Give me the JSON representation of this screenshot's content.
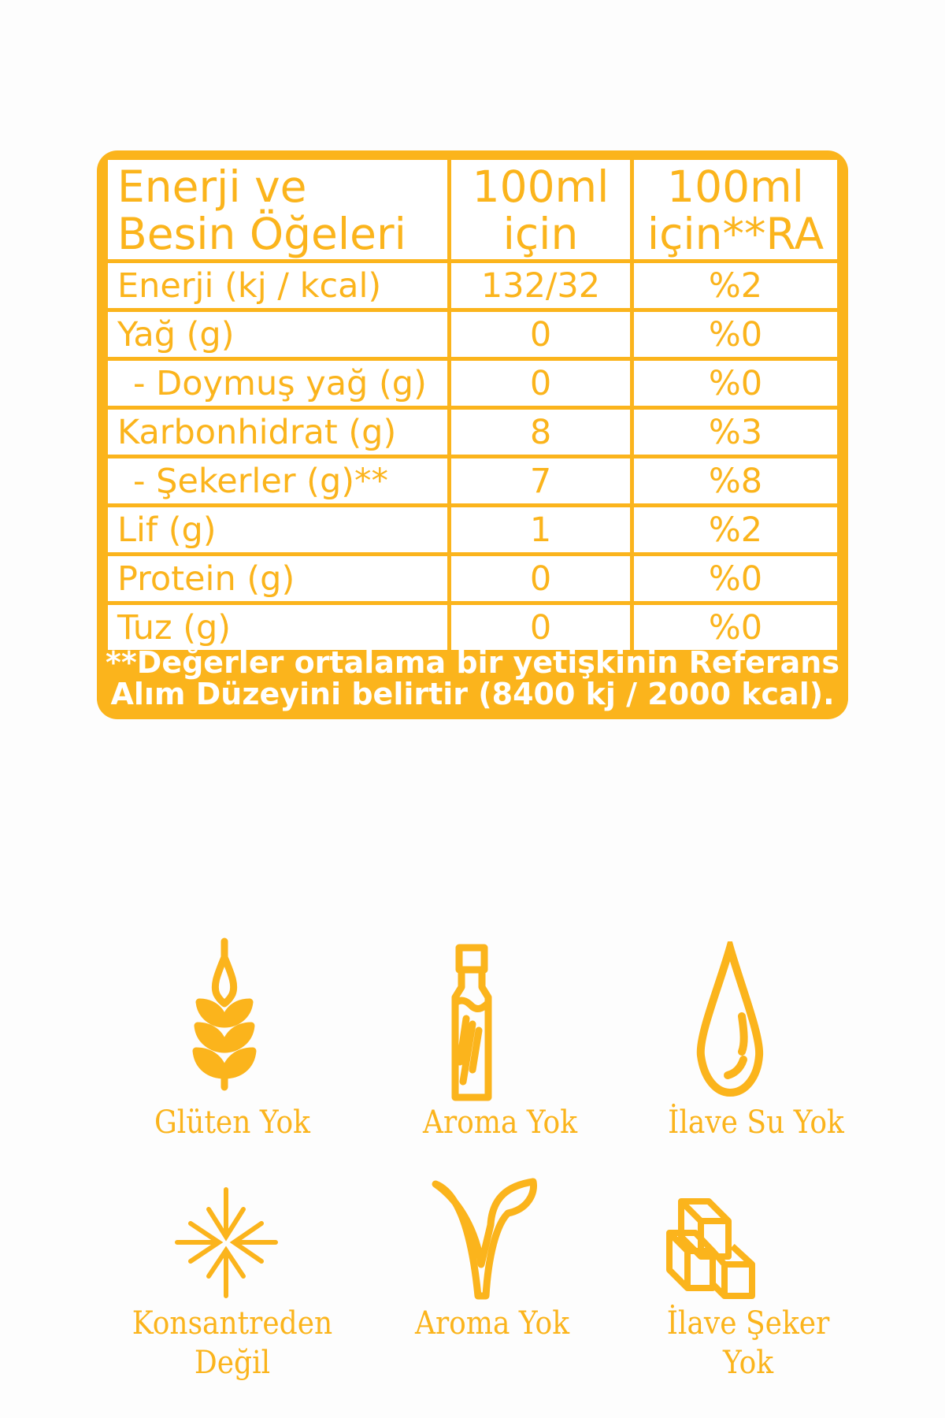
{
  "table": {
    "header": [
      "Enerji ve\nBesin Öğeleri",
      "100ml\niçin",
      "100ml\niçin**RA"
    ],
    "header_lines": [
      [
        "Enerji ve",
        "Besin Öğeleri"
      ],
      [
        "100ml",
        "için"
      ],
      [
        "100ml",
        "için**RA"
      ]
    ],
    "rows": [
      {
        "name": "Enerji (kj / kcal)",
        "value": "132/32",
        "ra": "%2"
      },
      {
        "name": "Yağ (g)",
        "value": "0",
        "ra": "%0"
      },
      {
        "name": "- Doymuş yağ (g)",
        "value": "0",
        "ra": "%0"
      },
      {
        "name": "Karbonhidrat (g)",
        "value": "8",
        "ra": "%3"
      },
      {
        "name": "- Şekerler (g)**",
        "value": "7",
        "ra": "%8"
      },
      {
        "name": "Lif (g)",
        "value": "1",
        "ra": "%2"
      },
      {
        "name": "Protein (g)",
        "value": "0",
        "ra": "%0"
      },
      {
        "name": "Tuz (g)",
        "value": "0",
        "ra": "%0"
      }
    ],
    "footnote_lines": [
      "**Değerler ortalama bir yetişkinin Referans",
      "Alım Düzeyini belirtir (8400 kj / 2000 kcal)."
    ]
  },
  "badges": [
    {
      "icon": "wheat-icon",
      "label": "Glüten Yok"
    },
    {
      "icon": "bottle-icon",
      "label": "Aroma Yok"
    },
    {
      "icon": "water-drop-icon",
      "label": "İlave Su Yok"
    },
    {
      "icon": "compress-arrows-icon",
      "label_lines": [
        "Konsantreden",
        "Değil"
      ]
    },
    {
      "icon": "leaf-sprout-icon",
      "label": "Aroma Yok"
    },
    {
      "icon": "sugar-cubes-icon",
      "label_lines": [
        "İlave Şeker",
        "Yok"
      ]
    }
  ],
  "colors": {
    "accent": "#fbb41c",
    "background": "#fdfdfd"
  }
}
